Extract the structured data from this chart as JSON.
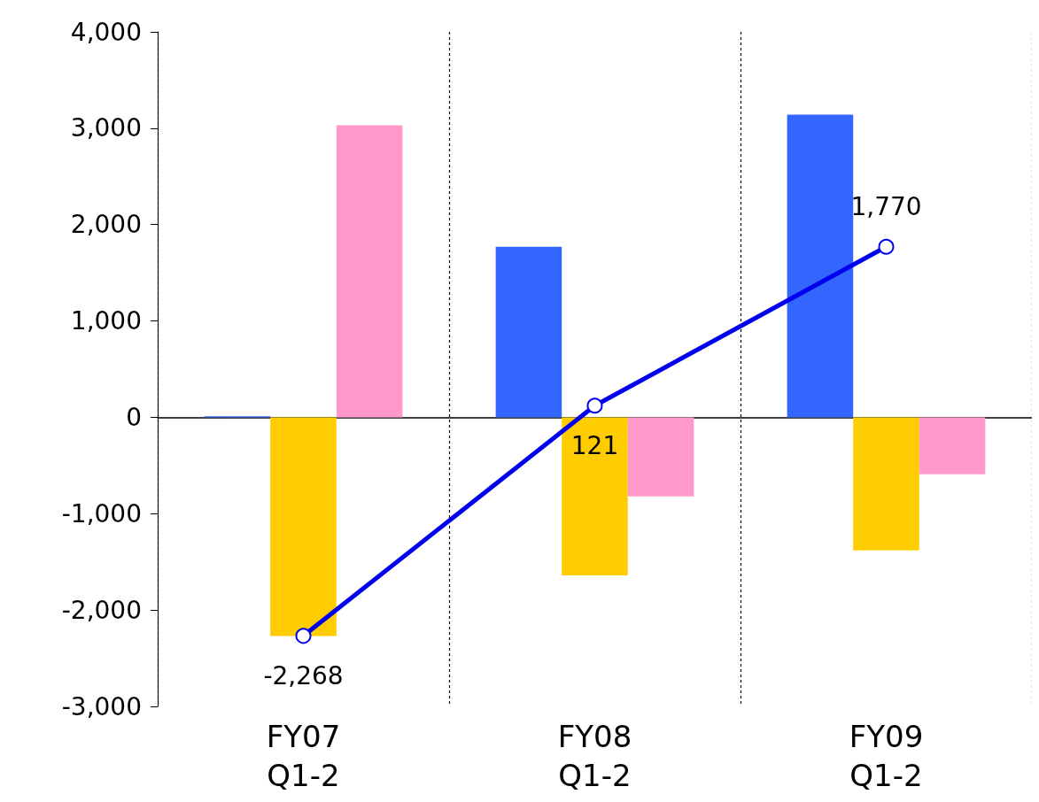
{
  "chart_data": {
    "type": "bar",
    "categories": [
      "FY07\nQ1-2",
      "FY08\nQ1-2",
      "FY09\nQ1-2"
    ],
    "series": [
      {
        "color": "#3366ff",
        "values": [
          10,
          1770,
          3140
        ]
      },
      {
        "color": "#ffcc00",
        "values": [
          -2270,
          -1640,
          -1380
        ]
      },
      {
        "color": "#ff99cc",
        "values": [
          3030,
          -820,
          -590
        ]
      },
      {
        "type": "line",
        "color": "#0000ee",
        "values": [
          -2268,
          121,
          1770
        ],
        "value_labels": [
          "-2,268",
          "121",
          "1,770"
        ],
        "marker": "circle"
      }
    ],
    "ylim": [
      -3000,
      4000
    ],
    "yticks": [
      {
        "value": -3000,
        "label": "-3,000"
      },
      {
        "value": -2000,
        "label": "-2,000"
      },
      {
        "value": -1000,
        "label": "-1,000"
      },
      0,
      {
        "value": 1000,
        "label": "1,000"
      },
      {
        "value": 2000,
        "label": "2,000"
      },
      {
        "value": 3000,
        "label": "3,000"
      },
      {
        "value": 4000,
        "label": "4,000"
      }
    ],
    "grid": "x",
    "line_style": "solid"
  }
}
